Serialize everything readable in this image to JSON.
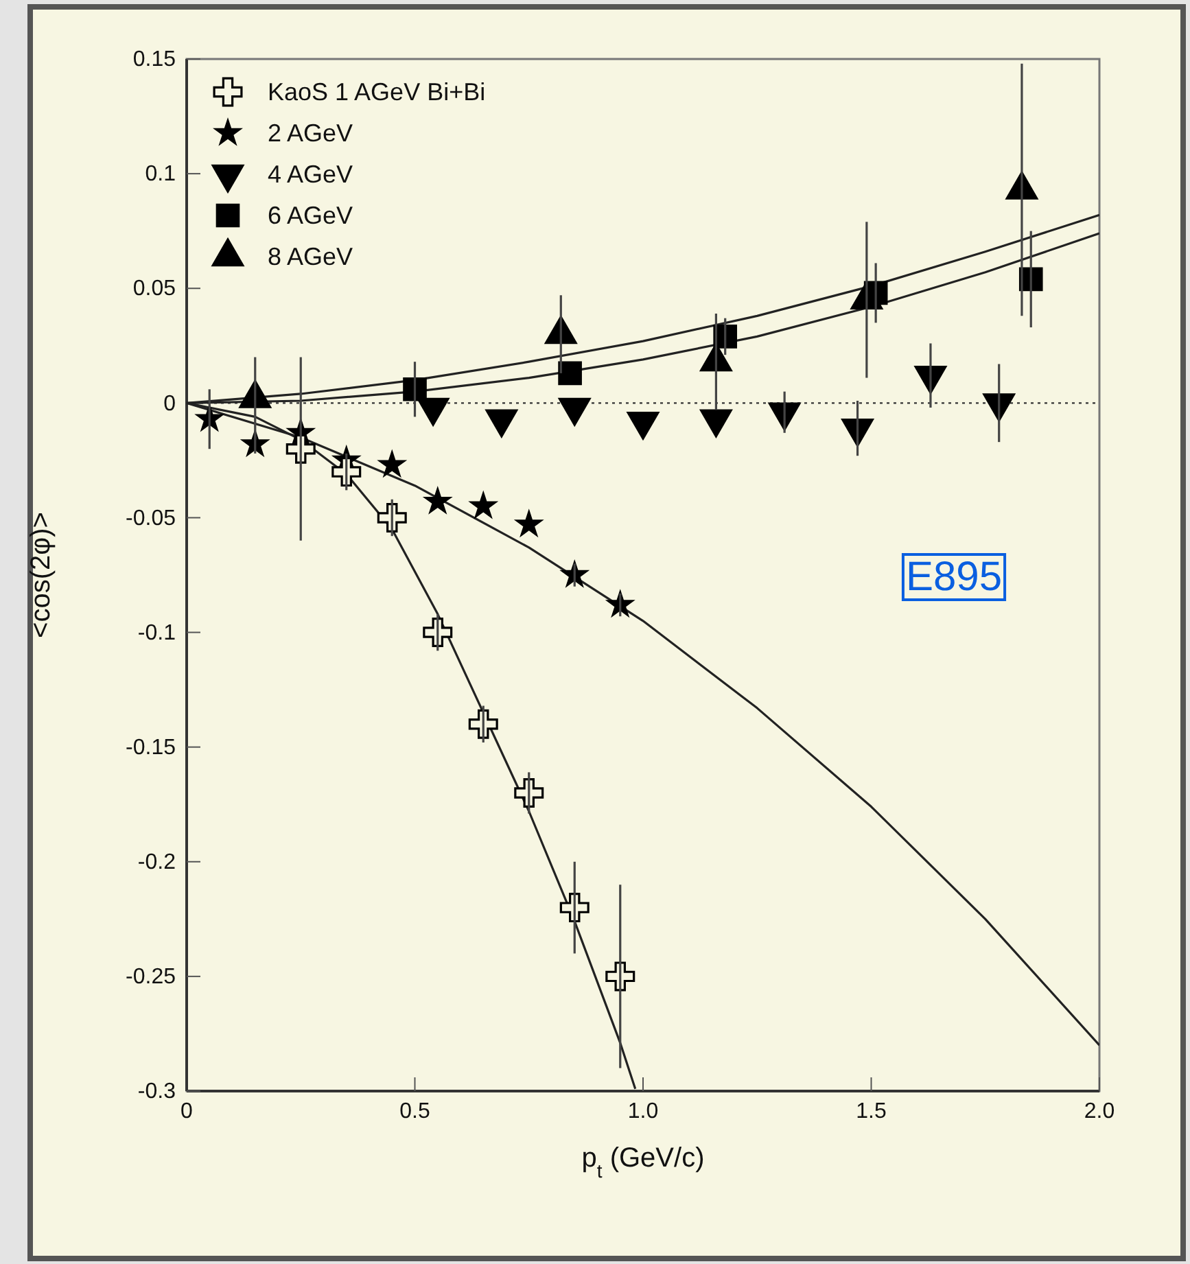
{
  "chart_data": {
    "type": "scatter",
    "xlabel": "p$_{t}$ (GeV/c)",
    "ylabel": "<cos(2φ)>",
    "xlim": [
      0,
      2.0
    ],
    "ylim": [
      -0.3,
      0.15
    ],
    "xticks": [
      0,
      0.5,
      {
        "value": 1.0,
        "label": "1.0"
      },
      1.5,
      {
        "value": 2.0,
        "label": "2.0"
      }
    ],
    "yticks": [
      -0.3,
      -0.25,
      -0.2,
      -0.15,
      -0.1,
      -0.05,
      0,
      0.05,
      0.1,
      0.15
    ],
    "grid": false,
    "legend": "top left",
    "ref_lines": [
      {
        "axis": "y",
        "value": 0,
        "line_style": "dotted",
        "color": "#333333"
      }
    ],
    "annotations": [
      "E895"
    ],
    "series": [
      {
        "name": "KaoS 1 AGeV Bi+Bi",
        "color": "#000000",
        "marker": "cross",
        "x": [
          0.25,
          0.35,
          0.45,
          0.55,
          0.65,
          0.75,
          0.85,
          0.95
        ],
        "values": [
          -0.02,
          -0.03,
          -0.05,
          -0.1,
          -0.14,
          -0.17,
          -0.22,
          -0.25
        ],
        "errors": [
          0.04,
          0.008,
          0.008,
          0.008,
          0.008,
          0.009,
          0.02,
          0.04
        ]
      },
      {
        "name": "2 AGeV",
        "color": "#000000",
        "marker": "star",
        "x": [
          0.05,
          0.15,
          0.25,
          0.35,
          0.45,
          0.55,
          0.65,
          0.75,
          0.85,
          0.95
        ],
        "values": [
          -0.007,
          -0.018,
          -0.013,
          -0.025,
          -0.027,
          -0.043,
          -0.045,
          -0.053,
          -0.075,
          -0.088
        ],
        "errors": [
          0.013,
          0.004,
          null,
          null,
          null,
          null,
          null,
          null,
          0.005,
          0.005
        ]
      },
      {
        "name": "4 AGeV",
        "color": "#000000",
        "marker": "triangle-down",
        "x": [
          0.54,
          0.69,
          0.85,
          1.0,
          1.16,
          1.31,
          1.47,
          1.63,
          1.78
        ],
        "values": [
          -0.002,
          -0.007,
          -0.002,
          -0.008,
          -0.007,
          -0.004,
          -0.011,
          0.012,
          0.0
        ],
        "errors": [
          null,
          null,
          null,
          null,
          null,
          0.009,
          0.012,
          0.014,
          0.017
        ]
      },
      {
        "name": "6 AGeV",
        "color": "#000000",
        "marker": "square",
        "x": [
          0.5,
          0.84,
          1.18,
          1.51,
          1.85
        ],
        "values": [
          0.006,
          0.013,
          0.029,
          0.048,
          0.054
        ],
        "errors": [
          0.012,
          null,
          0.008,
          0.013,
          0.021
        ]
      },
      {
        "name": "8 AGeV",
        "color": "#000000",
        "marker": "triangle",
        "x": [
          0.15,
          0.82,
          1.16,
          1.49,
          1.83
        ],
        "values": [
          0.002,
          0.03,
          0.018,
          0.045,
          0.093
        ],
        "errors": [
          0.018,
          0.017,
          0.021,
          0.034,
          0.055
        ]
      },
      {
        "type": "line",
        "color": "#222222",
        "marker": "none",
        "x": [
          0,
          0.15,
          0.25,
          0.35,
          0.45,
          0.55,
          0.65,
          0.75,
          0.85,
          0.95,
          0.983
        ],
        "values": [
          0,
          -0.006,
          -0.016,
          -0.031,
          -0.055,
          -0.092,
          -0.135,
          -0.178,
          -0.226,
          -0.279,
          -0.299
        ]
      },
      {
        "type": "line",
        "color": "#222222",
        "marker": "none",
        "x": [
          0,
          0.25,
          0.5,
          0.75,
          1,
          1.25,
          1.5,
          1.75,
          2
        ],
        "values": [
          0,
          -0.015,
          -0.036,
          -0.063,
          -0.095,
          -0.133,
          -0.176,
          -0.225,
          -0.28
        ]
      },
      {
        "type": "line",
        "color": "#222222",
        "marker": "none",
        "x": [
          0,
          0.25,
          0.5,
          0.75,
          1,
          1.25,
          1.5,
          1.75,
          2
        ],
        "values": [
          0,
          0.004,
          0.01,
          0.018,
          0.027,
          0.038,
          0.051,
          0.066,
          0.082
        ]
      },
      {
        "type": "line",
        "color": "#222222",
        "marker": "none",
        "x": [
          0,
          0.25,
          0.5,
          0.75,
          1,
          1.25,
          1.5,
          1.75,
          2
        ],
        "values": [
          0,
          0.001,
          0.005,
          0.011,
          0.019,
          0.029,
          0.042,
          0.057,
          0.074
        ]
      }
    ]
  }
}
